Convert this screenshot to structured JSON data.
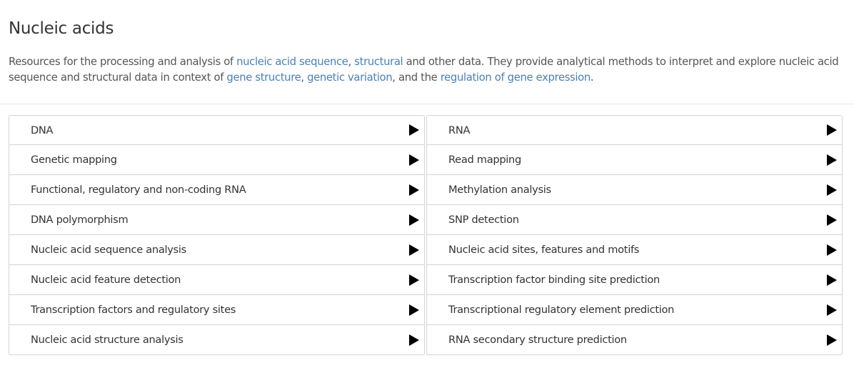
{
  "header": {
    "title": "Nucleic acids"
  },
  "description": {
    "t1": "Resources for the processing and analysis of ",
    "link1": "nucleic acid sequence",
    "t2": ", ",
    "link2": "structural",
    "t3": " and other data. They provide analytical methods to interpret and explore nucleic acid sequence and structural data in context of ",
    "link3": "gene structure",
    "t4": ", ",
    "link4": "genetic variation",
    "t5": ", and the ",
    "link5": "regulation of gene expression",
    "t6": "."
  },
  "colors": {
    "link": "#4a7fb5",
    "text": "#333333",
    "border": "#d4d4d4"
  },
  "categories": {
    "left": [
      {
        "label": "DNA",
        "icon": "arrow-right-icon"
      },
      {
        "label": "Genetic mapping",
        "icon": "arrow-right-icon"
      },
      {
        "label": "Functional, regulatory and non-coding RNA",
        "icon": "arrow-right-icon"
      },
      {
        "label": "DNA polymorphism",
        "icon": "arrow-right-icon"
      },
      {
        "label": "Nucleic acid sequence analysis",
        "icon": "arrow-right-icon"
      },
      {
        "label": "Nucleic acid feature detection",
        "icon": "arrow-right-icon"
      },
      {
        "label": "Transcription factors and regulatory sites",
        "icon": "arrow-right-icon"
      },
      {
        "label": "Nucleic acid structure analysis",
        "icon": "arrow-right-icon"
      }
    ],
    "right": [
      {
        "label": "RNA",
        "icon": "arrow-right-icon"
      },
      {
        "label": "Read mapping",
        "icon": "arrow-right-icon"
      },
      {
        "label": "Methylation analysis",
        "icon": "arrow-right-icon"
      },
      {
        "label": "SNP detection",
        "icon": "arrow-right-icon"
      },
      {
        "label": "Nucleic acid sites, features and motifs",
        "icon": "arrow-right-icon"
      },
      {
        "label": "Transcription factor binding site prediction",
        "icon": "arrow-right-icon"
      },
      {
        "label": "Transcriptional regulatory element prediction",
        "icon": "arrow-right-icon"
      },
      {
        "label": "RNA secondary structure prediction",
        "icon": "arrow-right-icon"
      }
    ]
  }
}
